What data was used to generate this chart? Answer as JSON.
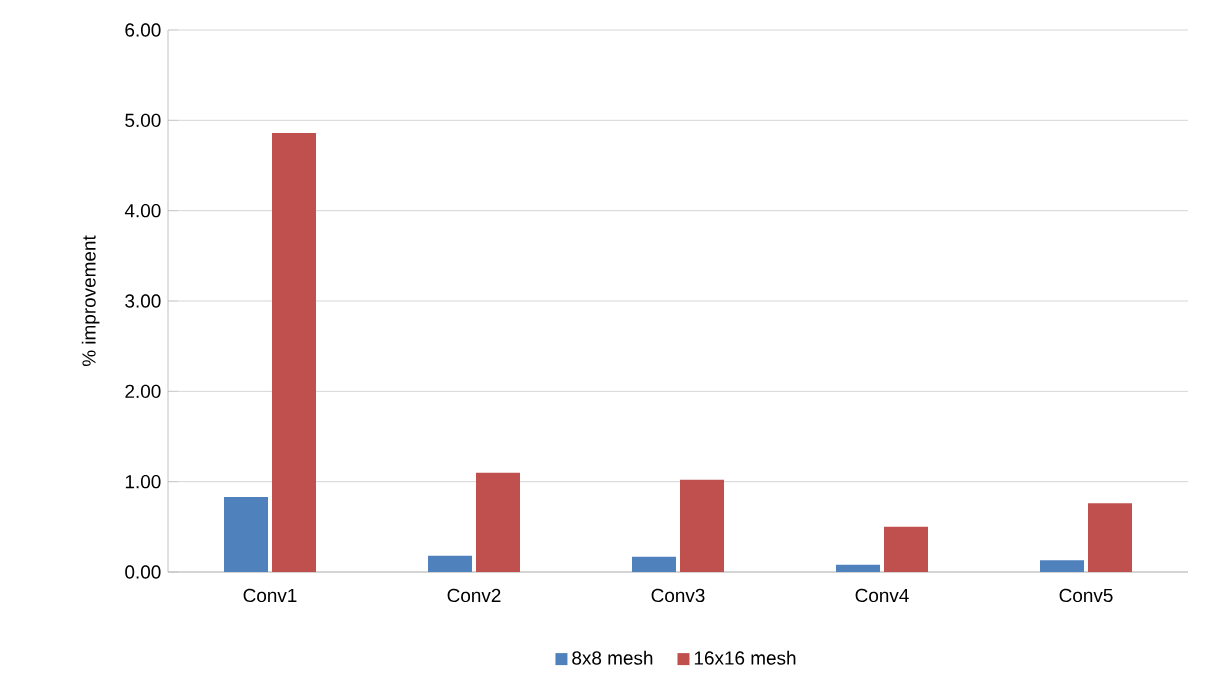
{
  "chart_data": {
    "type": "bar",
    "ylabel": "% improvement",
    "categories": [
      "Conv1",
      "Conv2",
      "Conv3",
      "Conv4",
      "Conv5"
    ],
    "series": [
      {
        "name": "8x8 mesh",
        "color": "#4f81bd",
        "values": [
          0.83,
          0.18,
          0.17,
          0.08,
          0.13
        ]
      },
      {
        "name": "16x16 mesh",
        "color": "#c0504d",
        "values": [
          4.86,
          1.1,
          1.02,
          0.5,
          0.76
        ]
      }
    ],
    "ylim": [
      0,
      6
    ],
    "yticks": [
      {
        "value": 0,
        "label": "0.00"
      },
      {
        "value": 1,
        "label": "1.00"
      },
      {
        "value": 2,
        "label": "2.00"
      },
      {
        "value": 3,
        "label": "3.00"
      },
      {
        "value": 4,
        "label": "4.00"
      },
      {
        "value": 5,
        "label": "5.00"
      },
      {
        "value": 6,
        "label": "6.00"
      }
    ],
    "grid": "y",
    "legend": "bottom"
  }
}
